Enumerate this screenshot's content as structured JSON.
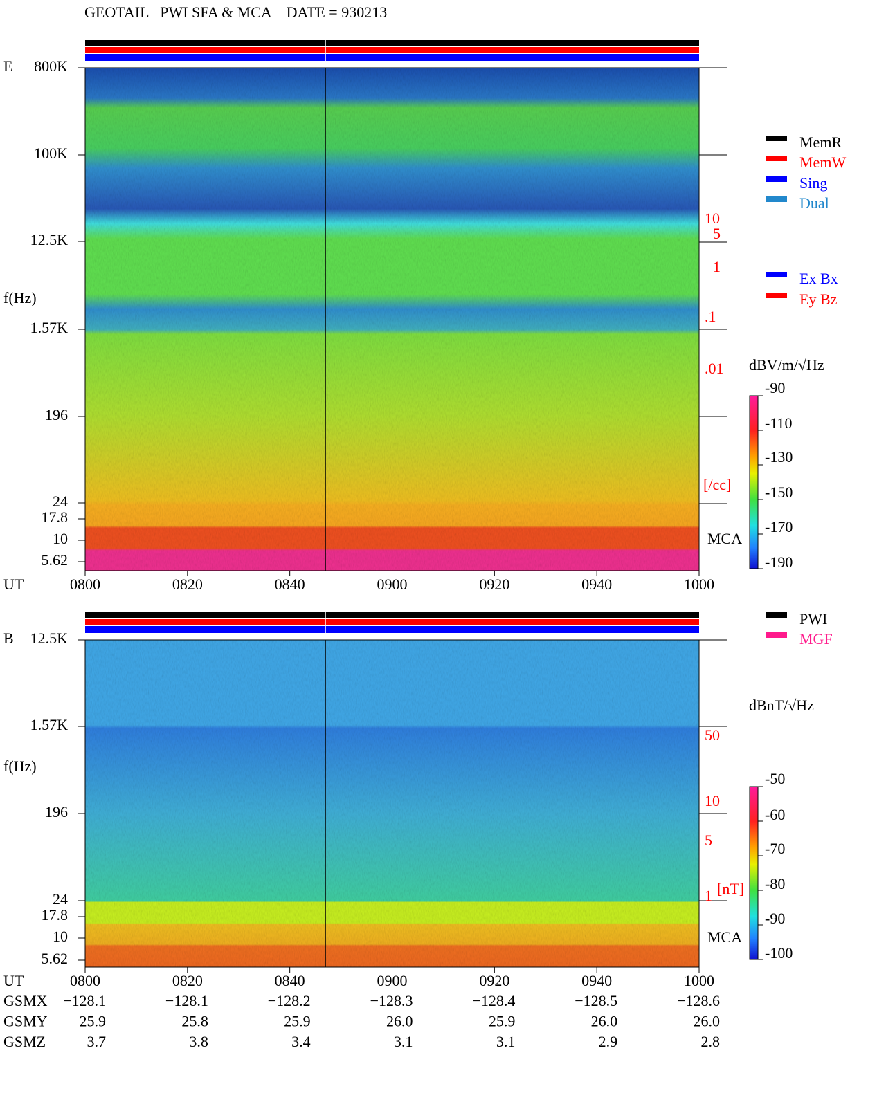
{
  "header": {
    "title": "GEOTAIL   PWI SFA & MCA    DATE = 930213"
  },
  "panels": [
    {
      "label": "E",
      "y_label": "f(Hz)",
      "y_ticks": [
        "800K",
        "100K",
        "12.5K",
        "1.57K",
        "196",
        "24",
        "17.8",
        "10",
        "5.62"
      ],
      "x_label": "UT",
      "x_ticks": [
        "0800",
        "0820",
        "0840",
        "0900",
        "0920",
        "0940",
        "1000"
      ],
      "right_labels": [
        "10",
        "5",
        "1",
        ".1",
        ".01",
        "[/cc]"
      ],
      "mca": "MCA",
      "legend": [
        {
          "label": "MemR",
          "color": "#000000"
        },
        {
          "label": "MemW",
          "color": "#ff0000"
        },
        {
          "label": "Sing",
          "color": "#0000ff"
        },
        {
          "label": "Dual",
          "color": "#2288cc"
        }
      ],
      "legend2": [
        {
          "label": "Ex Bx",
          "color": "#0000ff"
        },
        {
          "label": "Ey Bz",
          "color": "#ff0000"
        }
      ],
      "colorbar": {
        "unit": "dBV/m/√Hz",
        "ticks": [
          "-90",
          "-110",
          "-130",
          "-150",
          "-170",
          "-190"
        ]
      }
    },
    {
      "label": "B",
      "y_label": "f(Hz)",
      "y_ticks": [
        "12.5K",
        "1.57K",
        "196",
        "24",
        "17.8",
        "10",
        "5.62"
      ],
      "x_label": "UT",
      "x_ticks": [
        "0800",
        "0820",
        "0840",
        "0900",
        "0920",
        "0940",
        "1000"
      ],
      "right_labels": [
        "50",
        "10",
        "5",
        "1",
        "[nT]"
      ],
      "mca": "MCA",
      "legend": [
        {
          "label": "PWI",
          "color": "#000000"
        },
        {
          "label": "MGF",
          "color": "#ff1a8c"
        }
      ],
      "colorbar": {
        "unit": "dBnT/√Hz",
        "ticks": [
          "-50",
          "-60",
          "-70",
          "-80",
          "-90",
          "-100"
        ]
      }
    }
  ],
  "ephemeris": {
    "rows": [
      {
        "label": "GSMX",
        "values": [
          "−128.1",
          "−128.1",
          "−128.2",
          "−128.3",
          "−128.4",
          "−128.5",
          "−128.6"
        ]
      },
      {
        "label": "GSMY",
        "values": [
          "25.9",
          "25.8",
          "25.9",
          "26.0",
          "25.9",
          "26.0",
          "26.0"
        ]
      },
      {
        "label": "GSMZ",
        "values": [
          "3.7",
          "3.8",
          "3.4",
          "3.1",
          "3.1",
          "2.9",
          "2.8"
        ]
      }
    ]
  }
}
